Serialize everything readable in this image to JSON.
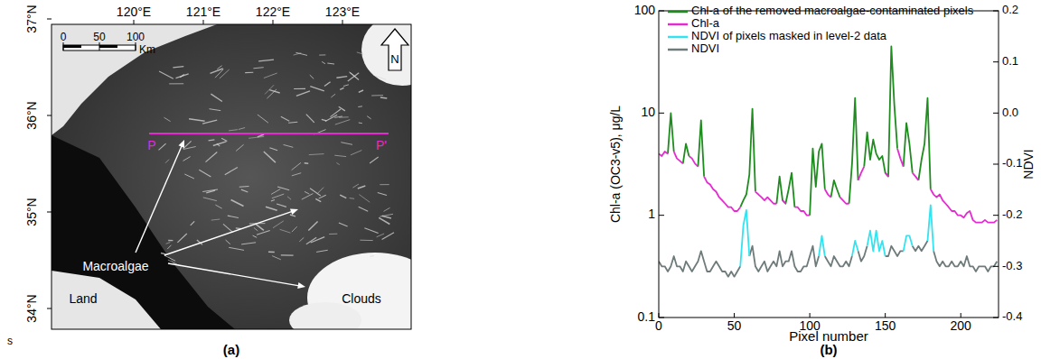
{
  "map": {
    "caption": "(a)",
    "lon_labels": [
      {
        "value": 120,
        "label": "120°E"
      },
      {
        "value": 121,
        "label": "121°E"
      },
      {
        "value": 122,
        "label": "122°E"
      },
      {
        "value": 123,
        "label": "123°E"
      }
    ],
    "lat_labels": [
      {
        "value": 37,
        "label": "37°N"
      },
      {
        "value": 36,
        "label": "36°N"
      },
      {
        "value": 35,
        "label": "35°N"
      },
      {
        "value": 34,
        "label": "34°N"
      }
    ],
    "scale_labels": [
      0,
      50,
      100
    ],
    "scale_unit": "Km",
    "north": "N",
    "transect_start": "P",
    "transect_end": "P'",
    "feature_label": "Macroalgae",
    "land_label": "Land",
    "cloud_label": "Clouds",
    "margin_text": "s"
  },
  "chart_data": [
    {
      "type": "line",
      "caption": "(b)",
      "x_label": "Pixel number",
      "y_label": "Chl-a (OC3-v5), μg/L",
      "y2_label": "NDVI",
      "log": "y",
      "legend": "top",
      "xlim": [
        0,
        225
      ],
      "xticks": [
        0,
        50,
        100,
        150,
        200
      ],
      "ylim": [
        0.1,
        100
      ],
      "yticks": [
        0.1,
        1,
        10,
        100
      ],
      "y2lim": [
        -0.4,
        0.2
      ],
      "y2ticks": [
        -0.4,
        -0.3,
        -0.2,
        -0.1,
        {
          "value": 0,
          "label": "0.0"
        },
        0.1,
        0.2
      ],
      "x": [
        0,
        2,
        4,
        6,
        8,
        10,
        12,
        14,
        16,
        18,
        20,
        22,
        24,
        26,
        28,
        30,
        32,
        34,
        36,
        38,
        40,
        42,
        44,
        46,
        48,
        50,
        52,
        54,
        56,
        58,
        60,
        62,
        64,
        66,
        68,
        70,
        72,
        74,
        76,
        78,
        80,
        82,
        84,
        86,
        88,
        90,
        92,
        94,
        96,
        98,
        100,
        102,
        104,
        106,
        108,
        110,
        112,
        114,
        116,
        118,
        120,
        122,
        124,
        126,
        128,
        130,
        132,
        134,
        136,
        138,
        140,
        142,
        144,
        146,
        148,
        150,
        152,
        154,
        156,
        158,
        160,
        162,
        164,
        166,
        168,
        170,
        172,
        174,
        176,
        178,
        180,
        182,
        184,
        186,
        188,
        190,
        192,
        194,
        196,
        198,
        200,
        202,
        204,
        206,
        208,
        210,
        212,
        214,
        216,
        218,
        220,
        222,
        224
      ],
      "series": [
        {
          "name": "Chl-a of the removed macroalgae-contaminated pixels",
          "color": "#1e8c1e",
          "values": [
            null,
            null,
            null,
            4.0,
            10,
            4.2,
            null,
            null,
            3.2,
            5.0,
            3.8,
            null,
            null,
            3.0,
            8.5,
            2.4,
            null,
            null,
            null,
            null,
            null,
            null,
            null,
            null,
            null,
            null,
            null,
            1.2,
            1.4,
            1.6,
            2.5,
            11,
            1.7,
            null,
            null,
            null,
            null,
            null,
            null,
            1.3,
            2.4,
            1.4,
            1.3,
            1.8,
            2.6,
            1.2,
            null,
            null,
            null,
            null,
            1.0,
            4.5,
            1.9,
            4.2,
            5.0,
            1.8,
            null,
            1.5,
            2.2,
            1.8,
            1.5,
            null,
            null,
            1.3,
            3.2,
            14,
            2.2,
            null,
            3.0,
            6.5,
            3.5,
            5.5,
            4.0,
            3.5,
            3.8,
            2.6,
            2.4,
            45,
            12,
            4.5,
            null,
            3.0,
            8,
            5,
            2.6,
            null,
            2.2,
            3.5,
            5.0,
            14,
            1.8,
            null,
            null,
            null,
            null,
            null,
            null,
            null,
            null,
            null,
            null,
            null,
            null,
            null,
            null,
            null,
            null,
            null,
            null,
            null,
            null,
            null,
            null
          ]
        },
        {
          "name": "Chl-a",
          "color": "#e62ad2",
          "values": [
            4.0,
            3.8,
            4.2,
            4.0,
            null,
            4.2,
            3.6,
            3.4,
            3.2,
            null,
            3.8,
            3.6,
            3.2,
            3.0,
            null,
            2.4,
            2.1,
            2.0,
            1.8,
            1.7,
            1.5,
            1.4,
            1.3,
            1.2,
            1.2,
            1.1,
            1.1,
            1.2,
            null,
            null,
            null,
            null,
            1.7,
            1.6,
            1.5,
            1.4,
            1.5,
            1.4,
            1.3,
            1.3,
            null,
            1.4,
            1.3,
            null,
            null,
            1.2,
            1.2,
            1.1,
            1.1,
            1.0,
            1.0,
            null,
            null,
            null,
            null,
            1.8,
            1.6,
            1.5,
            null,
            null,
            1.5,
            1.4,
            1.3,
            1.3,
            null,
            null,
            2.2,
            2.6,
            3.0,
            null,
            null,
            null,
            null,
            3.5,
            null,
            2.6,
            2.4,
            null,
            null,
            4.5,
            3.6,
            3.0,
            null,
            null,
            2.6,
            2.4,
            2.2,
            null,
            null,
            null,
            1.8,
            1.6,
            1.5,
            1.6,
            1.4,
            1.3,
            1.2,
            1.1,
            1.1,
            1.0,
            1.0,
            0.95,
            1.05,
            1.1,
            0.9,
            0.85,
            0.85,
            0.85,
            0.9,
            0.85,
            0.85,
            0.85,
            0.9
          ]
        },
        {
          "name": "NDVI of pixels masked in level-2 data",
          "color": "#33e3ef",
          "axis": "y2",
          "values": [
            null,
            null,
            null,
            null,
            null,
            null,
            null,
            null,
            null,
            null,
            null,
            null,
            null,
            null,
            null,
            null,
            null,
            null,
            null,
            null,
            null,
            null,
            null,
            null,
            null,
            null,
            null,
            -0.3,
            -0.22,
            -0.19,
            -0.28,
            null,
            null,
            null,
            null,
            null,
            null,
            null,
            null,
            null,
            null,
            null,
            null,
            null,
            null,
            null,
            null,
            null,
            null,
            null,
            null,
            null,
            null,
            -0.28,
            -0.24,
            -0.28,
            null,
            null,
            null,
            null,
            null,
            null,
            null,
            null,
            -0.28,
            -0.25,
            -0.27,
            null,
            null,
            -0.26,
            -0.23,
            -0.27,
            -0.23,
            -0.27,
            -0.25,
            -0.28,
            null,
            null,
            null,
            null,
            null,
            -0.27,
            -0.24,
            -0.24,
            -0.26,
            null,
            null,
            null,
            null,
            -0.25,
            -0.18,
            -0.27,
            null,
            null,
            null,
            null,
            null,
            null,
            null,
            null,
            null,
            null,
            null,
            null,
            null,
            null,
            null,
            null,
            null,
            null,
            null,
            null,
            null
          ]
        },
        {
          "name": "NDVI",
          "color": "#6f7b7b",
          "axis": "y2",
          "values": [
            -0.29,
            -0.3,
            -0.3,
            -0.31,
            -0.3,
            -0.28,
            -0.3,
            -0.3,
            -0.31,
            -0.29,
            -0.3,
            -0.31,
            -0.3,
            -0.29,
            -0.27,
            -0.29,
            -0.31,
            -0.31,
            -0.3,
            -0.29,
            -0.3,
            -0.31,
            -0.31,
            -0.32,
            -0.31,
            -0.32,
            -0.31,
            -0.3,
            null,
            null,
            -0.28,
            -0.26,
            -0.3,
            -0.31,
            -0.3,
            -0.29,
            -0.31,
            -0.3,
            -0.29,
            -0.3,
            -0.27,
            -0.3,
            -0.29,
            -0.29,
            -0.27,
            -0.3,
            -0.31,
            -0.31,
            -0.3,
            -0.3,
            -0.28,
            -0.26,
            -0.3,
            -0.28,
            null,
            -0.28,
            -0.29,
            -0.3,
            -0.28,
            -0.29,
            -0.3,
            -0.3,
            -0.29,
            -0.3,
            -0.28,
            null,
            -0.27,
            -0.29,
            -0.28,
            -0.26,
            null,
            null,
            null,
            -0.27,
            null,
            -0.28,
            -0.28,
            -0.26,
            -0.27,
            -0.28,
            -0.27,
            -0.27,
            null,
            null,
            -0.26,
            -0.27,
            -0.26,
            -0.27,
            -0.26,
            -0.25,
            null,
            -0.27,
            -0.29,
            -0.3,
            -0.29,
            -0.3,
            -0.3,
            -0.29,
            -0.3,
            -0.3,
            -0.29,
            -0.3,
            -0.28,
            -0.3,
            -0.3,
            -0.31,
            -0.3,
            -0.3,
            -0.3,
            -0.31,
            -0.3,
            -0.3,
            -0.29
          ]
        }
      ]
    }
  ]
}
